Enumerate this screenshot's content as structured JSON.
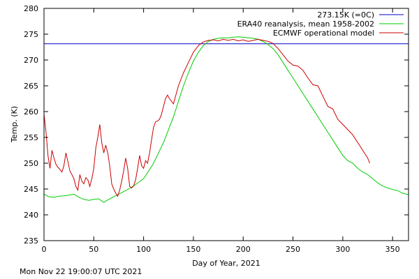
{
  "chart_data": {
    "type": "line",
    "title": "",
    "xlabel": "Day of Year, 2021",
    "ylabel": "Temp. (K)",
    "xlim": [
      0,
      366
    ],
    "ylim": [
      235,
      280
    ],
    "xticks": [
      0,
      50,
      100,
      150,
      200,
      250,
      300,
      350
    ],
    "yticks": [
      235,
      240,
      245,
      250,
      255,
      260,
      265,
      270,
      275,
      280
    ],
    "grid": false,
    "legend_position": "top-right",
    "reference_line": {
      "name": "273.15K (=0C)",
      "value": 273.15,
      "color": "#0000c8"
    },
    "series": [
      {
        "name": "ERA40 reanalysis, mean 1958-2002",
        "color": "#00cc00",
        "x": [
          0,
          5,
          10,
          15,
          20,
          25,
          30,
          35,
          40,
          45,
          50,
          55,
          60,
          65,
          70,
          75,
          80,
          85,
          90,
          95,
          100,
          105,
          110,
          115,
          120,
          125,
          130,
          135,
          140,
          145,
          150,
          155,
          160,
          165,
          170,
          175,
          180,
          185,
          190,
          195,
          200,
          205,
          210,
          215,
          220,
          225,
          230,
          235,
          240,
          245,
          250,
          255,
          260,
          265,
          270,
          275,
          280,
          285,
          290,
          295,
          300,
          305,
          310,
          315,
          320,
          325,
          330,
          335,
          340,
          345,
          350,
          355,
          360,
          366
        ],
        "y": [
          244.0,
          243.5,
          243.4,
          243.6,
          243.7,
          243.8,
          244.0,
          243.4,
          243.0,
          242.8,
          243.0,
          243.1,
          242.4,
          243.0,
          243.5,
          244.0,
          244.5,
          245.0,
          245.6,
          246.3,
          247.0,
          248.5,
          250.0,
          252.0,
          254.0,
          256.5,
          259.0,
          262.0,
          265.0,
          267.5,
          269.8,
          271.5,
          272.8,
          273.6,
          274.0,
          274.2,
          274.3,
          274.3,
          274.4,
          274.5,
          274.4,
          274.3,
          274.2,
          274.0,
          273.6,
          273.0,
          272.2,
          271.0,
          269.5,
          268.0,
          266.5,
          265.0,
          263.5,
          262.0,
          260.5,
          259.0,
          257.5,
          256.0,
          254.5,
          253.0,
          251.5,
          250.5,
          250.0,
          249.0,
          248.3,
          247.8,
          247.0,
          246.2,
          245.6,
          245.2,
          244.9,
          244.7,
          244.2,
          243.9
        ]
      },
      {
        "name": "ECMWF operational model",
        "color": "#cc0000",
        "x": [
          0,
          2,
          4,
          6,
          8,
          10,
          12,
          14,
          16,
          18,
          20,
          22,
          24,
          26,
          28,
          30,
          32,
          34,
          36,
          38,
          40,
          42,
          44,
          46,
          48,
          50,
          52,
          54,
          56,
          58,
          60,
          62,
          64,
          66,
          68,
          70,
          72,
          74,
          76,
          78,
          80,
          82,
          84,
          86,
          88,
          90,
          92,
          94,
          96,
          98,
          100,
          102,
          104,
          106,
          108,
          110,
          112,
          114,
          116,
          118,
          120,
          122,
          124,
          126,
          128,
          130,
          135,
          140,
          145,
          150,
          155,
          160,
          165,
          170,
          175,
          180,
          185,
          190,
          195,
          200,
          205,
          210,
          215,
          220,
          225,
          230,
          235,
          240,
          245,
          250,
          255,
          260,
          265,
          270,
          275,
          280,
          285,
          290,
          295,
          300,
          305,
          310,
          315,
          320,
          325,
          327
        ],
        "y": [
          259.5,
          256.0,
          251.5,
          249.0,
          252.5,
          251.0,
          249.8,
          249.2,
          248.8,
          248.3,
          249.5,
          252.0,
          250.3,
          248.5,
          247.8,
          247.0,
          245.5,
          244.8,
          247.8,
          246.5,
          246.0,
          247.2,
          246.8,
          245.5,
          247.0,
          249.0,
          253.0,
          255.0,
          257.5,
          254.0,
          252.0,
          253.5,
          252.0,
          249.5,
          246.0,
          245.0,
          244.2,
          243.6,
          244.8,
          246.5,
          248.5,
          251.0,
          249.0,
          245.5,
          245.2,
          245.6,
          246.8,
          249.0,
          251.5,
          249.5,
          249.0,
          250.5,
          250.0,
          252.0,
          254.5,
          257.0,
          258.0,
          258.2,
          258.5,
          259.5,
          261.0,
          262.5,
          263.2,
          262.5,
          262.0,
          261.5,
          265.0,
          267.5,
          269.5,
          271.5,
          272.8,
          273.5,
          273.8,
          273.9,
          273.7,
          274.0,
          273.8,
          274.0,
          273.7,
          273.9,
          273.6,
          273.8,
          274.0,
          273.8,
          273.6,
          273.2,
          272.2,
          271.0,
          269.8,
          269.0,
          268.8,
          268.0,
          266.5,
          265.2,
          265.0,
          263.0,
          261.0,
          260.5,
          258.5,
          257.5,
          256.5,
          255.5,
          254.0,
          252.5,
          251.0,
          250.0
        ]
      }
    ]
  },
  "footer": {
    "timestamp": "Mon Nov 22 19:00:07 UTC 2021"
  }
}
